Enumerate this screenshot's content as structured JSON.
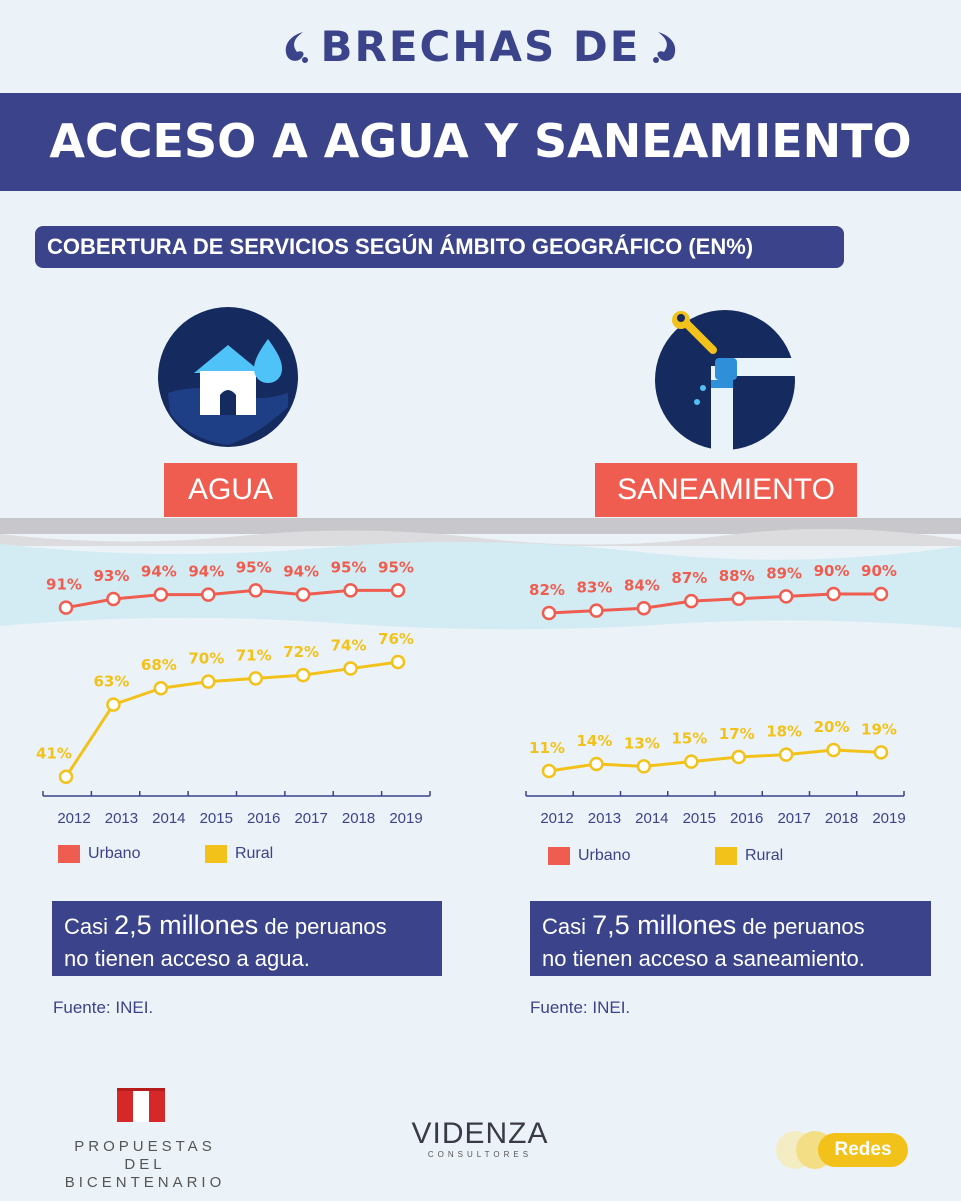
{
  "header": {
    "title_line1": "BRECHAS DE",
    "title_line2": "ACCESO A AGUA Y SANEAMIENTO",
    "subtitle": "COBERTURA DE SERVICIOS SEGÚN ÁMBITO GEOGRÁFICO (EN%)"
  },
  "colors": {
    "navy": "#3b438a",
    "urbano": "#ee5d4f",
    "rural": "#f2c21b",
    "light_blue_band": "#d9eef5"
  },
  "agua": {
    "label": "AGUA",
    "icon": "house-water-drop-icon",
    "info_prefix": "Casi",
    "info_amount": "2,5 millones",
    "info_suffix": "de peruanos",
    "info_line2": "no tienen acceso a agua.",
    "source": "Fuente: INEI."
  },
  "saneamiento": {
    "label": "SANEAMIENTO",
    "icon": "pipe-wrench-icon",
    "info_prefix": "Casi",
    "info_amount": "7,5 millones",
    "info_suffix": "de peruanos",
    "info_line2": "no tienen acceso a saneamiento.",
    "source": "Fuente: INEI."
  },
  "chart_data": [
    {
      "type": "line",
      "x": [
        "2012",
        "2013",
        "2014",
        "2015",
        "2016",
        "2017",
        "2018",
        "2019"
      ],
      "series": [
        {
          "name": "Urbano",
          "values": [
            91,
            93,
            94,
            94,
            95,
            94,
            95,
            95
          ],
          "labels": [
            "91%",
            "93%",
            "94%",
            "94%",
            "95%",
            "94%",
            "95%",
            "95%"
          ]
        },
        {
          "name": "Rural",
          "values": [
            41,
            63,
            68,
            70,
            71,
            72,
            74,
            76
          ],
          "labels": [
            "41%",
            "63%",
            "68%",
            "70%",
            "71%",
            "72%",
            "74%",
            "76%"
          ]
        }
      ],
      "title": "AGUA",
      "legend": "bottom-left"
    },
    {
      "type": "line",
      "x": [
        "2012",
        "2013",
        "2014",
        "2015",
        "2016",
        "2017",
        "2018",
        "2019"
      ],
      "series": [
        {
          "name": "Urbano",
          "values": [
            82,
            83,
            84,
            87,
            88,
            89,
            90,
            90
          ],
          "labels": [
            "82%",
            "83%",
            "84%",
            "87%",
            "88%",
            "89%",
            "90%",
            "90%"
          ]
        },
        {
          "name": "Rural",
          "values": [
            11,
            14,
            13,
            15,
            17,
            18,
            20,
            19
          ],
          "labels": [
            "11%",
            "14%",
            "13%",
            "15%",
            "17%",
            "18%",
            "20%",
            "19%"
          ]
        }
      ],
      "title": "SANEAMIENTO",
      "legend": "bottom-left"
    }
  ],
  "footer": {
    "propuestas_line1": "PROPUESTAS DEL",
    "propuestas_line2": "BICENTENARIO",
    "videnza": "VIDENZA",
    "videnza_sub": "CONSULTORES",
    "redes": "Redes"
  }
}
